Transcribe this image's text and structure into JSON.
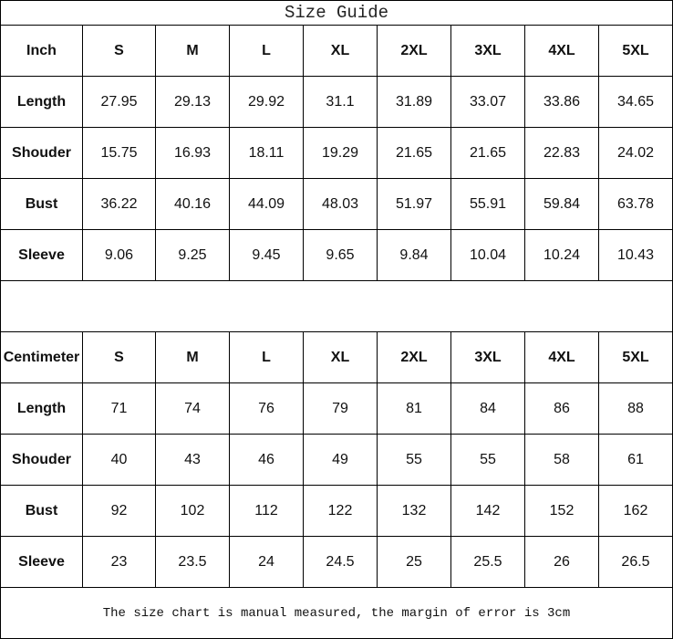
{
  "title": "Size Guide",
  "sizes": [
    "S",
    "M",
    "L",
    "XL",
    "2XL",
    "3XL",
    "4XL",
    "5XL"
  ],
  "inch": {
    "label": "Inch",
    "rows": [
      {
        "name": "Length",
        "values": [
          "27.95",
          "29.13",
          "29.92",
          "31.1",
          "31.89",
          "33.07",
          "33.86",
          "34.65"
        ]
      },
      {
        "name": "Shouder",
        "values": [
          "15.75",
          "16.93",
          "18.11",
          "19.29",
          "21.65",
          "21.65",
          "22.83",
          "24.02"
        ]
      },
      {
        "name": "Bust",
        "values": [
          "36.22",
          "40.16",
          "44.09",
          "48.03",
          "51.97",
          "55.91",
          "59.84",
          "63.78"
        ]
      },
      {
        "name": "Sleeve",
        "values": [
          "9.06",
          "9.25",
          "9.45",
          "9.65",
          "9.84",
          "10.04",
          "10.24",
          "10.43"
        ]
      }
    ]
  },
  "cm": {
    "label": "Centimeter",
    "rows": [
      {
        "name": "Length",
        "values": [
          "71",
          "74",
          "76",
          "79",
          "81",
          "84",
          "86",
          "88"
        ]
      },
      {
        "name": "Shouder",
        "values": [
          "40",
          "43",
          "46",
          "49",
          "55",
          "55",
          "58",
          "61"
        ]
      },
      {
        "name": "Bust",
        "values": [
          "92",
          "102",
          "112",
          "122",
          "132",
          "142",
          "152",
          "162"
        ]
      },
      {
        "name": "Sleeve",
        "values": [
          "23",
          "23.5",
          "24",
          "24.5",
          "25",
          "25.5",
          "26",
          "26.5"
        ]
      }
    ]
  },
  "note": "The size chart is manual measured, the margin of error is 3cm"
}
